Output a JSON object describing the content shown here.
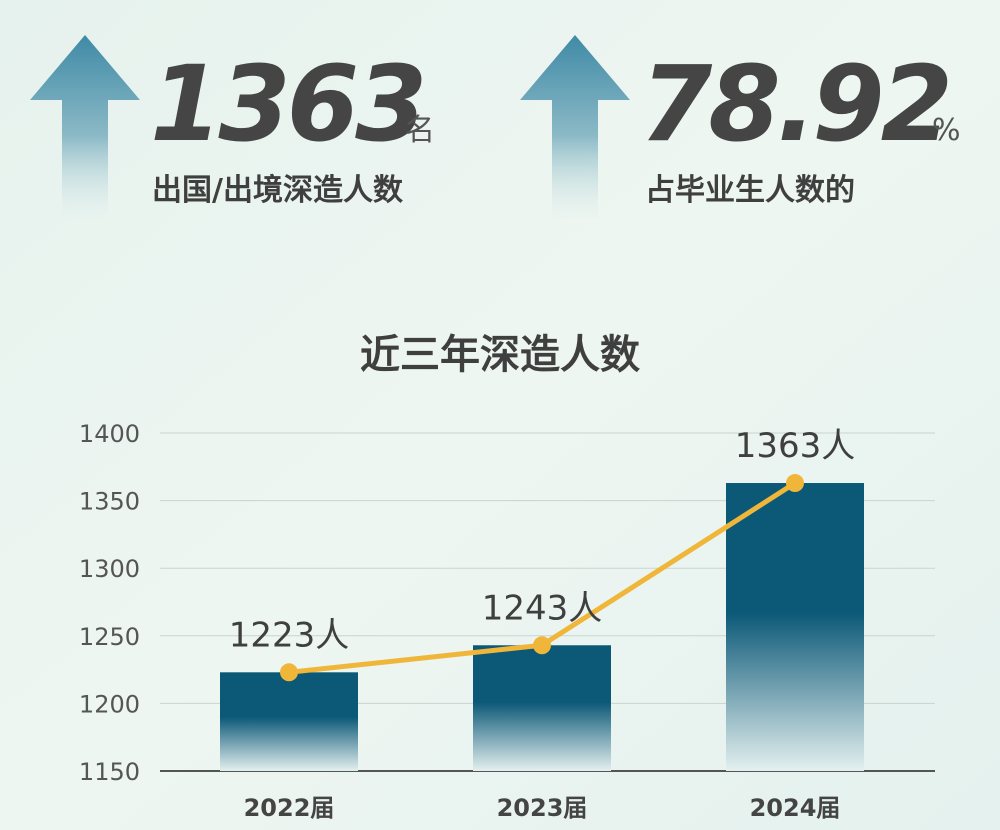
{
  "stats": [
    {
      "value": "1363",
      "unit": "名",
      "label": "出国/出境深造人数"
    },
    {
      "value": "78.92",
      "unit": "%",
      "label": "占毕业生人数的"
    }
  ],
  "chart_data": {
    "type": "bar_line",
    "title": "近三年深造人数",
    "categories": [
      "2022届",
      "2023届",
      "2024届"
    ],
    "series": [
      {
        "type": "bar",
        "color": "#0b5877",
        "values": [
          1223,
          1243,
          1363
        ]
      },
      {
        "type": "line",
        "color": "#f0b63a",
        "values": [
          1223,
          1243,
          1363
        ],
        "value_labels": [
          "1223人",
          "1243人",
          "1363人"
        ]
      }
    ],
    "ylim": [
      1150,
      1400
    ],
    "yticks": [
      1150,
      1200,
      1250,
      1300,
      1350,
      1400
    ],
    "grid": true
  }
}
